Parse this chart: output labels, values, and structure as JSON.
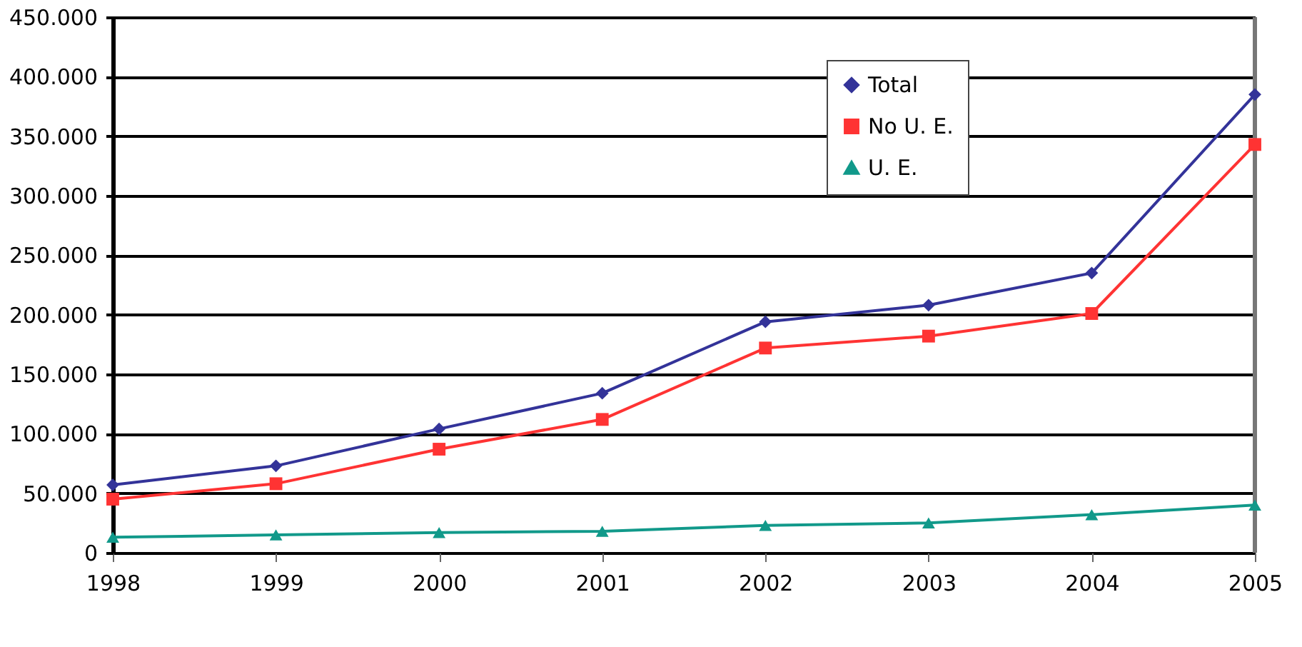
{
  "chart_data": {
    "type": "line",
    "categories": [
      "1998",
      "1999",
      "2000",
      "2001",
      "2002",
      "2003",
      "2004",
      "2005"
    ],
    "series": [
      {
        "name": "Total",
        "color": "#333399",
        "marker": "diamond",
        "values": [
          57000,
          73000,
          104000,
          134000,
          194000,
          208000,
          235000,
          385000
        ]
      },
      {
        "name": "No U. E.",
        "color": "#ff3333",
        "marker": "square",
        "values": [
          45000,
          58000,
          87000,
          112000,
          172000,
          182000,
          201000,
          343000
        ]
      },
      {
        "name": "U. E.",
        "color": "#11998a",
        "marker": "triangle",
        "values": [
          13000,
          15000,
          17000,
          18000,
          23000,
          25000,
          32000,
          40000
        ]
      }
    ],
    "ylim": [
      0,
      450000
    ],
    "yticks": [
      0,
      {
        "value": 50000,
        "label": "50.000"
      },
      {
        "value": 100000,
        "label": "100.000"
      },
      {
        "value": 150000,
        "label": "150.000"
      },
      {
        "value": 200000,
        "label": "200.000"
      },
      {
        "value": 250000,
        "label": "250.000"
      },
      {
        "value": 300000,
        "label": "300.000"
      },
      {
        "value": 350000,
        "label": "350.000"
      },
      {
        "value": 400000,
        "label": "400.000"
      },
      {
        "value": 450000,
        "label": "450.000"
      }
    ],
    "grid": "y",
    "legend": "top right",
    "line_style": "solid"
  }
}
